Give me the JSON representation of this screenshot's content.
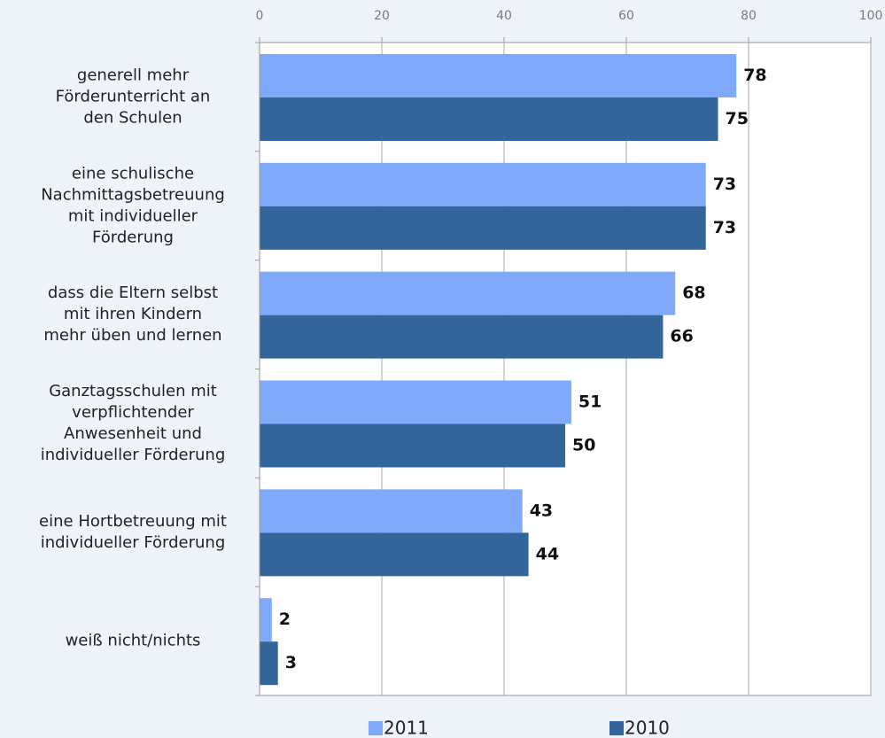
{
  "chart_data": {
    "type": "hbar",
    "categories": [
      "generell mehr\nFörderunterricht an\nden Schulen",
      "eine schulische\nNachmittagsbetreuung\nmit individueller\nFörderung",
      "dass die Eltern selbst\nmit ihren Kindern\nmehr üben und lernen",
      "Ganztagsschulen mit\nverpflichtender\nAnwesenheit und\nindividueller Förderung",
      "eine Hortbetreuung mit\nindividueller Förderung",
      "weiß nicht/nichts"
    ],
    "series": [
      {
        "name": "2011",
        "color": "#80a9f9",
        "values": [
          78,
          73,
          68,
          51,
          43,
          2
        ]
      },
      {
        "name": "2010",
        "color": "#34659a",
        "values": [
          75,
          73,
          66,
          50,
          44,
          3
        ]
      }
    ],
    "xlim": [
      0,
      100
    ],
    "xticks": [
      0,
      20,
      40,
      60,
      80,
      100
    ],
    "grid": true,
    "legend": "bottom"
  }
}
